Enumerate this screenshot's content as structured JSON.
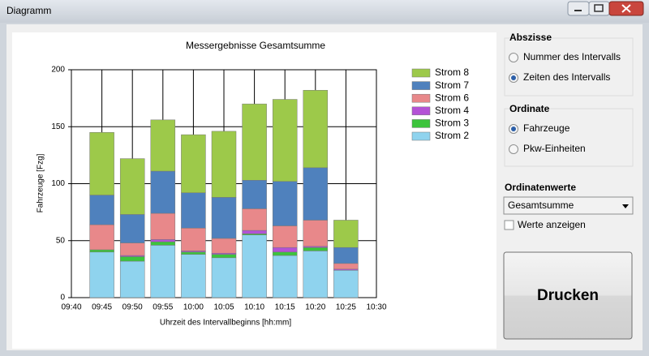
{
  "window": {
    "title": "Diagramm"
  },
  "chart_data": {
    "type": "bar",
    "stacked": true,
    "title": "Messergebnisse Gesamtsumme",
    "x_label": "Uhrzeit des Intervallbeginns [hh:mm]",
    "y_label": "Fahrzeuge [Fzg]",
    "x": [
      "09:45",
      "09:50",
      "09:55",
      "10:00",
      "10:05",
      "10:10",
      "10:15",
      "10:20",
      "10:25"
    ],
    "xticks": [
      "09:40",
      "09:45",
      "09:50",
      "09:55",
      "10:00",
      "10:05",
      "10:10",
      "10:15",
      "10:20",
      "10:25",
      "10:30"
    ],
    "ylim": [
      0,
      200
    ],
    "yticks": [
      0,
      50,
      100,
      150,
      200
    ],
    "grid": true,
    "legend": "upper right",
    "series": [
      {
        "name": "Strom 2",
        "color": "#8fd3ee",
        "values": [
          40,
          32,
          46,
          38,
          35,
          55,
          37,
          41,
          24
        ]
      },
      {
        "name": "Strom 3",
        "color": "#3cc43c",
        "values": [
          2,
          4,
          3,
          2,
          3,
          1,
          3,
          3,
          0
        ]
      },
      {
        "name": "Strom 4",
        "color": "#b452d6",
        "values": [
          0,
          1,
          2,
          1,
          1,
          3,
          4,
          1,
          1
        ]
      },
      {
        "name": "Strom 6",
        "color": "#e8888a",
        "values": [
          22,
          11,
          23,
          20,
          13,
          19,
          19,
          23,
          5
        ]
      },
      {
        "name": "Strom 7",
        "color": "#4f81bd",
        "values": [
          26,
          25,
          37,
          31,
          36,
          25,
          39,
          46,
          14
        ]
      },
      {
        "name": "Strom 8",
        "color": "#9dc94a",
        "values": [
          55,
          49,
          45,
          51,
          58,
          67,
          72,
          68,
          24
        ]
      }
    ]
  },
  "controls": {
    "abszisse": {
      "label": "Abszisse",
      "options": [
        "Nummer des Intervalls",
        "Zeiten des Intervalls"
      ],
      "selected": 1
    },
    "ordinate": {
      "label": "Ordinate",
      "options": [
        "Fahrzeuge",
        "Pkw-Einheiten"
      ],
      "selected": 0
    },
    "ordinatenwerte": {
      "label": "Ordinatenwerte",
      "value": "Gesamtsumme"
    },
    "werte_anzeigen": {
      "label": "Werte anzeigen",
      "checked": false
    },
    "print_button": "Drucken"
  }
}
